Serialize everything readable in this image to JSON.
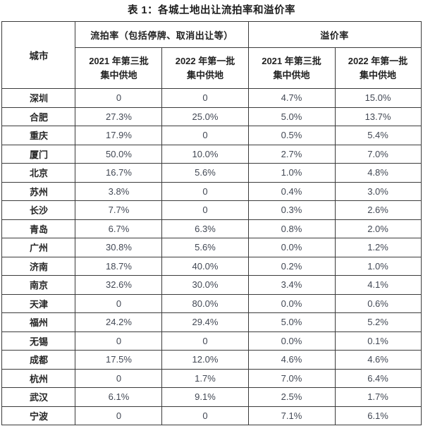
{
  "title": "表 1：各城土地出让流拍率和溢价率",
  "table": {
    "city_header": "城市",
    "groups": [
      {
        "label": "流拍率（包括停牌、取消出让等）"
      },
      {
        "label": "溢价率"
      }
    ],
    "subheaders": [
      {
        "line1": "2021 年第三批",
        "line2": "集中供地"
      },
      {
        "line1": "2022 年第一批",
        "line2": "集中供地"
      },
      {
        "line1": "2021 年第三批",
        "line2": "集中供地"
      },
      {
        "line1": "2022 年第一批",
        "line2": "集中供地"
      }
    ],
    "rows": [
      {
        "city": "深圳",
        "values": [
          "0",
          "0",
          "4.7%",
          "15.0%"
        ]
      },
      {
        "city": "合肥",
        "values": [
          "27.3%",
          "25.0%",
          "5.0%",
          "13.7%"
        ]
      },
      {
        "city": "重庆",
        "values": [
          "17.9%",
          "0",
          "0.5%",
          "5.4%"
        ]
      },
      {
        "city": "厦门",
        "values": [
          "50.0%",
          "10.0%",
          "2.7%",
          "7.0%"
        ]
      },
      {
        "city": "北京",
        "values": [
          "16.7%",
          "5.6%",
          "1.0%",
          "4.8%"
        ]
      },
      {
        "city": "苏州",
        "values": [
          "3.8%",
          "0",
          "0.4%",
          "3.0%"
        ]
      },
      {
        "city": "长沙",
        "values": [
          "7.7%",
          "0",
          "0.3%",
          "2.6%"
        ]
      },
      {
        "city": "青岛",
        "values": [
          "6.7%",
          "6.3%",
          "0.8%",
          "2.0%"
        ]
      },
      {
        "city": "广州",
        "values": [
          "30.8%",
          "5.6%",
          "0.0%",
          "1.2%"
        ]
      },
      {
        "city": "济南",
        "values": [
          "18.7%",
          "40.0%",
          "0.2%",
          "1.0%"
        ]
      },
      {
        "city": "南京",
        "values": [
          "32.6%",
          "30.0%",
          "3.4%",
          "4.1%"
        ]
      },
      {
        "city": "天津",
        "values": [
          "0",
          "80.0%",
          "0.0%",
          "0.6%"
        ]
      },
      {
        "city": "福州",
        "values": [
          "24.2%",
          "29.4%",
          "5.0%",
          "5.2%"
        ]
      },
      {
        "city": "无锡",
        "values": [
          "0",
          "0",
          "0.0%",
          "0.1%"
        ]
      },
      {
        "city": "成都",
        "values": [
          "17.5%",
          "12.0%",
          "4.6%",
          "4.6%"
        ]
      },
      {
        "city": "杭州",
        "values": [
          "0",
          "1.7%",
          "7.0%",
          "6.4%"
        ]
      },
      {
        "city": "武汉",
        "values": [
          "6.1%",
          "9.1%",
          "2.5%",
          "1.7%"
        ]
      },
      {
        "city": "宁波",
        "values": [
          "0",
          "0",
          "7.1%",
          "6.1%"
        ]
      }
    ]
  },
  "chart_data": {
    "type": "table",
    "title": "表 1：各城土地出让流拍率和溢价率",
    "columns": [
      "城市",
      "流拍率 2021 年第三批集中供地",
      "流拍率 2022 年第一批集中供地",
      "溢价率 2021 年第三批集中供地",
      "溢价率 2022 年第一批集中供地"
    ],
    "categories": [
      "深圳",
      "合肥",
      "重庆",
      "厦门",
      "北京",
      "苏州",
      "长沙",
      "青岛",
      "广州",
      "济南",
      "南京",
      "天津",
      "福州",
      "无锡",
      "成都",
      "杭州",
      "武汉",
      "宁波"
    ],
    "series": [
      {
        "name": "流拍率 2021 年第三批集中供地 (%)",
        "values": [
          0,
          27.3,
          17.9,
          50.0,
          16.7,
          3.8,
          7.7,
          6.7,
          30.8,
          18.7,
          32.6,
          0,
          24.2,
          0,
          17.5,
          0,
          6.1,
          0
        ]
      },
      {
        "name": "流拍率 2022 年第一批集中供地 (%)",
        "values": [
          0,
          25.0,
          0,
          10.0,
          5.6,
          0,
          0,
          6.3,
          5.6,
          40.0,
          30.0,
          80.0,
          29.4,
          0,
          12.0,
          1.7,
          9.1,
          0
        ]
      },
      {
        "name": "溢价率 2021 年第三批集中供地 (%)",
        "values": [
          4.7,
          5.0,
          0.5,
          2.7,
          1.0,
          0.4,
          0.3,
          0.8,
          0.0,
          0.2,
          3.4,
          0.0,
          5.0,
          0.0,
          4.6,
          7.0,
          2.5,
          7.1
        ]
      },
      {
        "name": "溢价率 2022 年第一批集中供地 (%)",
        "values": [
          15.0,
          13.7,
          5.4,
          7.0,
          4.8,
          3.0,
          2.6,
          2.0,
          1.2,
          1.0,
          4.1,
          0.6,
          5.2,
          0.1,
          4.6,
          6.4,
          1.7,
          6.1
        ]
      }
    ]
  }
}
